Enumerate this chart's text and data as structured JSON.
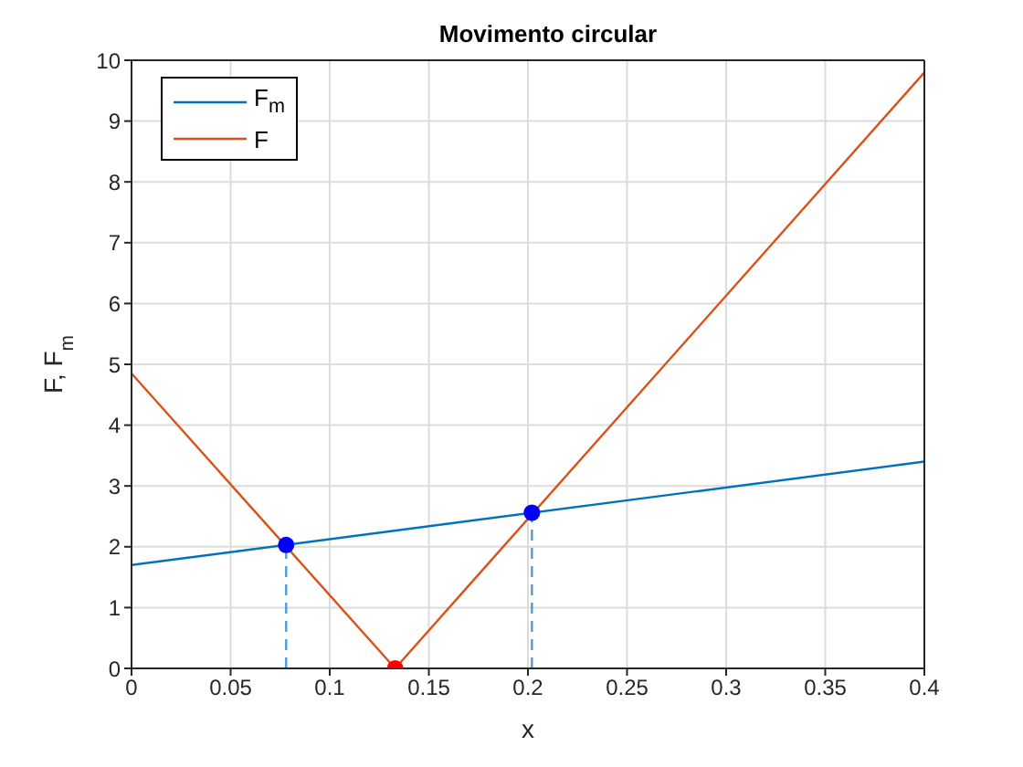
{
  "chart_data": {
    "type": "line",
    "title": "Movimento circular",
    "xlabel": "x",
    "ylabel": "F, F$_{m}$",
    "xlim": [
      0,
      0.4
    ],
    "xticks": [
      0,
      0.05,
      0.1,
      0.15,
      0.2,
      0.25,
      0.3,
      0.35,
      0.4
    ],
    "ylim": [
      0,
      10
    ],
    "yticks": [
      0,
      1,
      2,
      3,
      4,
      5,
      6,
      7,
      8,
      9,
      10
    ],
    "grid": true,
    "legend": "top left",
    "marker": "none",
    "series": [
      {
        "name": "F$_{m}$",
        "color": "#0072bd",
        "x": [
          0,
          0.4
        ],
        "values": [
          1.7,
          3.4
        ]
      },
      {
        "name": "F",
        "color": "#d95319",
        "x": [
          0,
          0.133,
          0.4
        ],
        "values": [
          4.85,
          0,
          9.8
        ]
      },
      {
        "color": "#4d9be0",
        "x": [
          0.078,
          0.078
        ],
        "values": [
          0,
          2.03
        ],
        "line_style": "dashed"
      },
      {
        "color": "#4d9be0",
        "x": [
          0.202,
          0.202
        ],
        "values": [
          0,
          2.56
        ],
        "line_style": "dashed"
      },
      {
        "type": "scatter",
        "marker": "circle",
        "color": "#0000ff",
        "x": [
          0.078,
          0.202
        ],
        "values": [
          2.03,
          2.56
        ]
      },
      {
        "type": "scatter",
        "marker": "circle",
        "color": "#ff0000",
        "x": [
          0.133
        ],
        "values": [
          0
        ]
      }
    ]
  }
}
